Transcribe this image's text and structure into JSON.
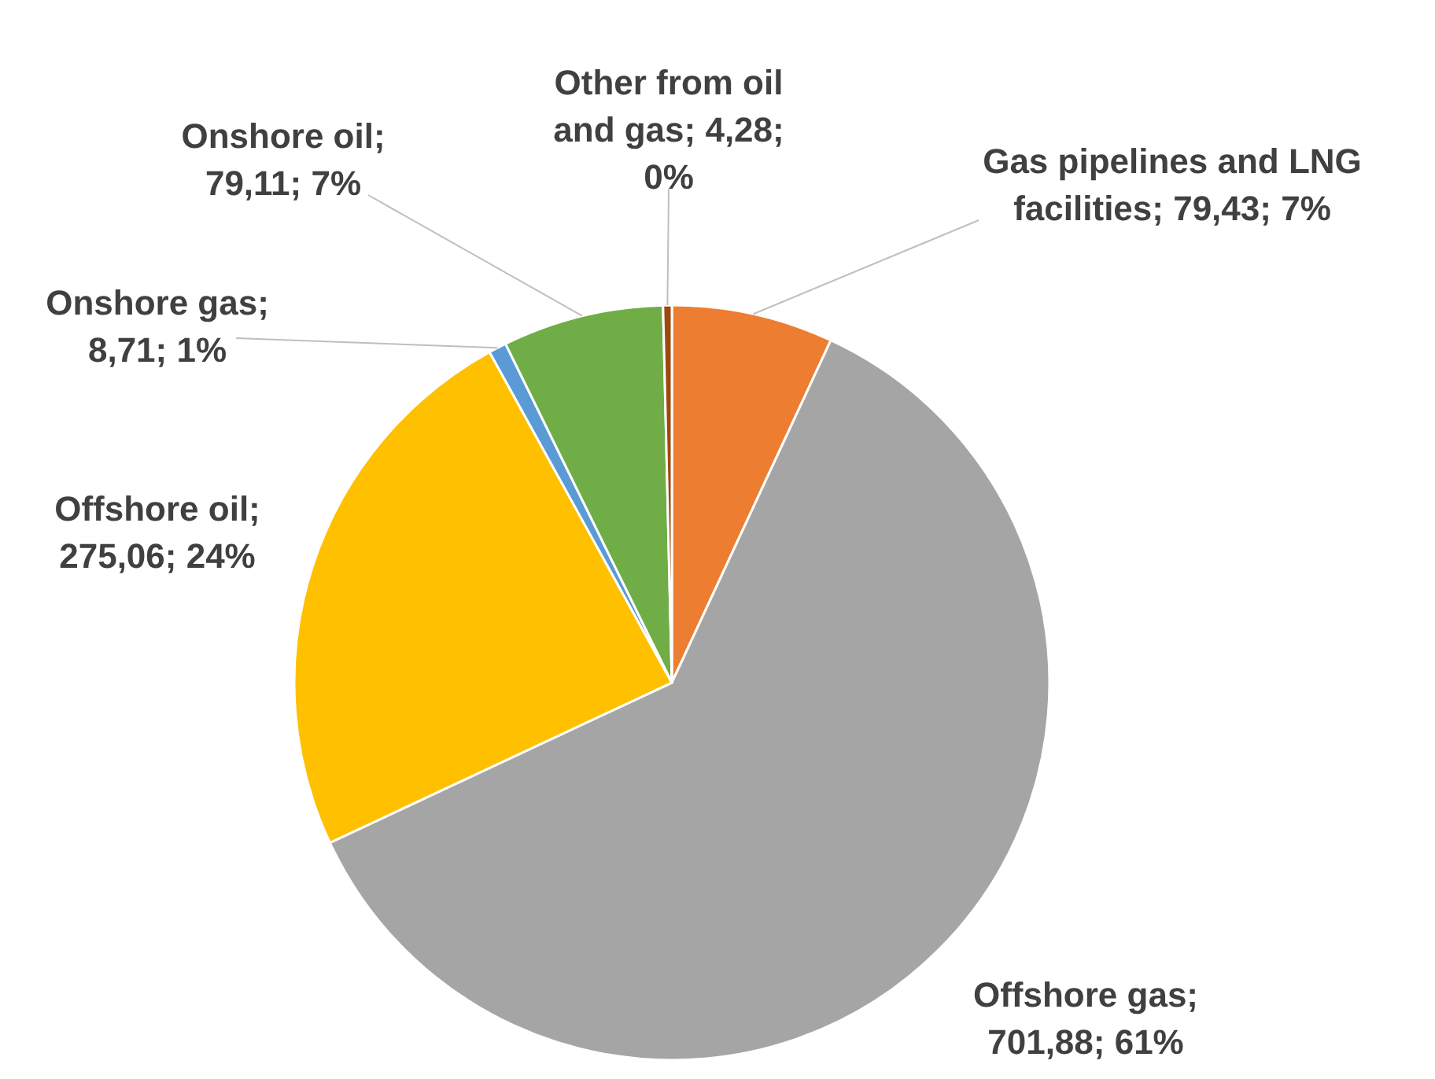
{
  "chart_data": {
    "type": "pie",
    "categories": [
      "Gas pipelines and LNG facilities",
      "Offshore gas",
      "Offshore oil",
      "Onshore gas",
      "Onshore oil",
      "Other from oil and gas"
    ],
    "values": [
      79.43,
      701.88,
      275.06,
      8.71,
      79.11,
      4.28
    ],
    "value_labels": [
      "; 79,43; 7%",
      "; 701,88; 61%",
      "; 275,06; 24%",
      "; 8,71; 1%",
      "; 79,11; 7%",
      "; 4,28; 0%"
    ],
    "colors": [
      "#ed7d31",
      "#a5a5a5",
      "#ffc000",
      "#5b9bd5",
      "#70ad47",
      "#9e480e"
    ]
  }
}
